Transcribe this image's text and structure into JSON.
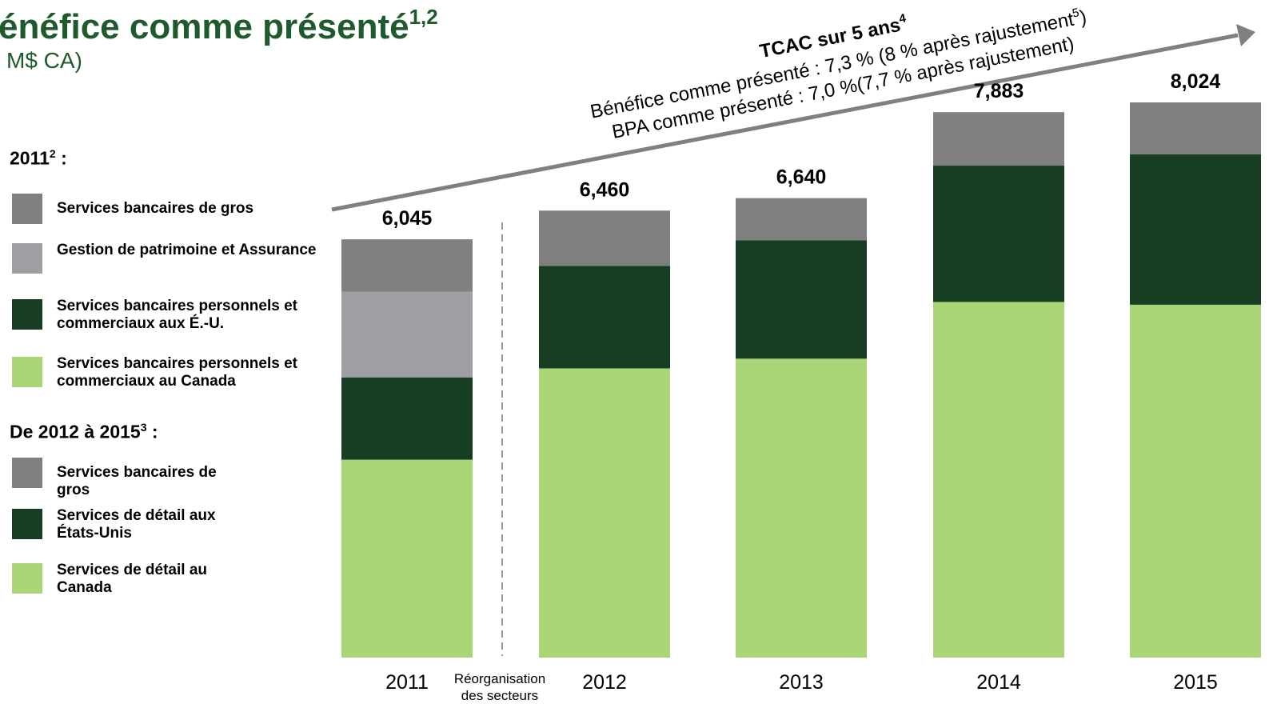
{
  "chart_data": {
    "type": "stacked_bar",
    "title": "énéfice comme présenté",
    "title_sup": "1,2",
    "subtitle": "M$ CA)",
    "categories": [
      "2011",
      "2012",
      "2013",
      "2014",
      "2015"
    ],
    "series": [
      {
        "name": "Services bancaires personnels et commerciaux au Canada",
        "name_2012_2015": "Services de détail au Canada",
        "color": "#aad576",
        "values": [
          2860,
          4180,
          4320,
          5140,
          5100
        ]
      },
      {
        "name": "Services bancaires personnels et commerciaux aux É.-U.",
        "name_2012_2015": "Services de détail aux États-Unis",
        "color": "#173d23",
        "values": [
          1190,
          1480,
          1710,
          1970,
          2173
        ]
      },
      {
        "name": "Gestion de patrimoine et Assurance",
        "name_2012_2015": null,
        "color": "#9e9ea3",
        "values": [
          1240,
          null,
          null,
          null,
          null
        ]
      },
      {
        "name": "Services bancaires de gros",
        "name_2012_2015": "Services bancaires de gros",
        "color": "#808080",
        "values": [
          755,
          800,
          610,
          773,
          751
        ]
      }
    ],
    "totals": [
      6045,
      6460,
      6640,
      7883,
      8024
    ],
    "total_labels": [
      "6,045",
      "6,460",
      "6,640",
      "7,883",
      "8,024"
    ],
    "legend_group_2011": {
      "title": "2011",
      "sup": "2",
      "suffix": " :"
    },
    "legend_group_2012_2015": {
      "title": "De 2012 à 2015",
      "sup": "3",
      "suffix": " :"
    },
    "divider_label": [
      "Réorganisation",
      "des secteurs"
    ],
    "annotation": {
      "heading": "TCAC sur 5 ans",
      "heading_sup": "4",
      "line1": "Bénéfice comme présenté : 7,3 % (8 % après rajustement",
      "line1_sup": "5",
      "line1_end": ")",
      "line2": "BPA comme présenté :  7,0 %(7,7 % après rajustement)"
    }
  }
}
